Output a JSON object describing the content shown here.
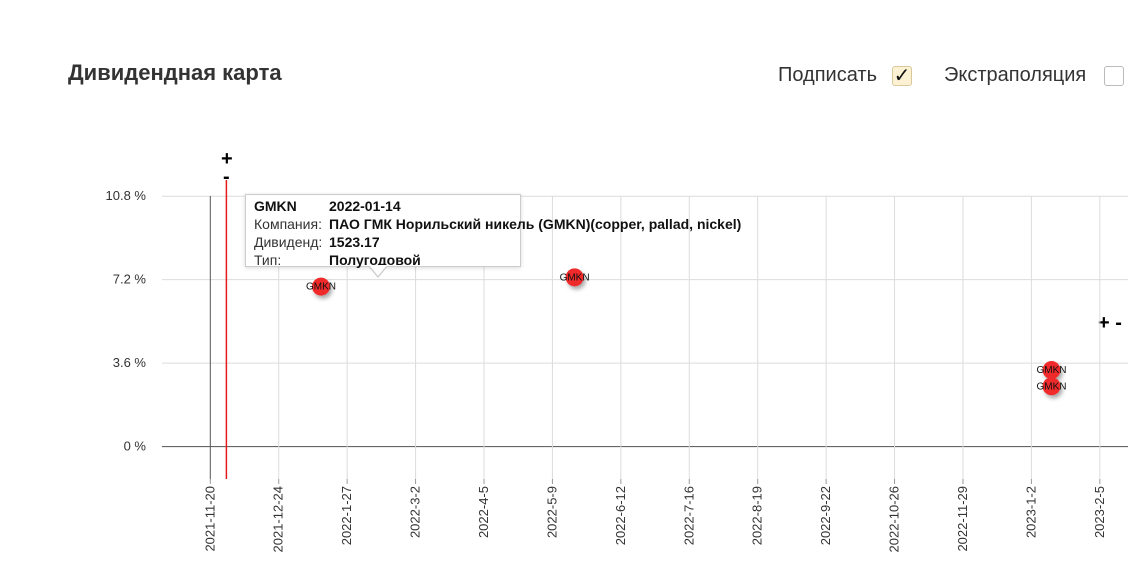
{
  "header": {
    "title": "Дивидендная карта",
    "sign_label": "Подписать",
    "sign_checked": true,
    "extrapolation_label": "Экстраполяция",
    "extrapolation_checked": false
  },
  "zoom": {
    "plus": "+",
    "minus": "-",
    "right_controls": "+ -"
  },
  "chart_data": {
    "type": "scatter",
    "title": "",
    "xlabel": "",
    "ylabel": "",
    "y_ticks": [
      "10.8 %",
      "7.2 %",
      "3.6 %",
      "0 %"
    ],
    "y_tick_values": [
      10.8,
      7.2,
      3.6,
      0
    ],
    "ylim": [
      -1.4,
      11.5
    ],
    "x_ticks": [
      "2021-11-20",
      "2021-12-24",
      "2022-1-27",
      "2022-3-2",
      "2022-4-5",
      "2022-5-9",
      "2022-6-12",
      "2022-7-16",
      "2022-8-19",
      "2022-9-22",
      "2022-10-26",
      "2022-11-29",
      "2023-1-2",
      "2023-2-5"
    ],
    "xlim": [
      "2021-10-27",
      "2023-2-19"
    ],
    "grid": true,
    "today_marker": "2021-11-28",
    "today_color": "#e31b1b",
    "point_color": "#f02a2a",
    "points": [
      {
        "label": "GMKN",
        "x": "2022-01-14",
        "y": 6.9
      },
      {
        "label": "GMKN",
        "x": "2022-05-20",
        "y": 7.3
      },
      {
        "label": "GMKN",
        "x": "2023-01-12",
        "y": 3.3
      },
      {
        "label": "GMKN",
        "x": "2023-01-12",
        "y": 2.6
      }
    ]
  },
  "tooltip": {
    "ticker": "GMKN",
    "date": "2022-01-14",
    "company_label": "Компания:",
    "company": "ПАО ГМК Норильский никель (GMKN)(copper, pallad, nickel)",
    "dividend_label": "Дивиденд:",
    "dividend": "1523.17",
    "type_label": "Тип:",
    "type": "Полугодовой"
  }
}
